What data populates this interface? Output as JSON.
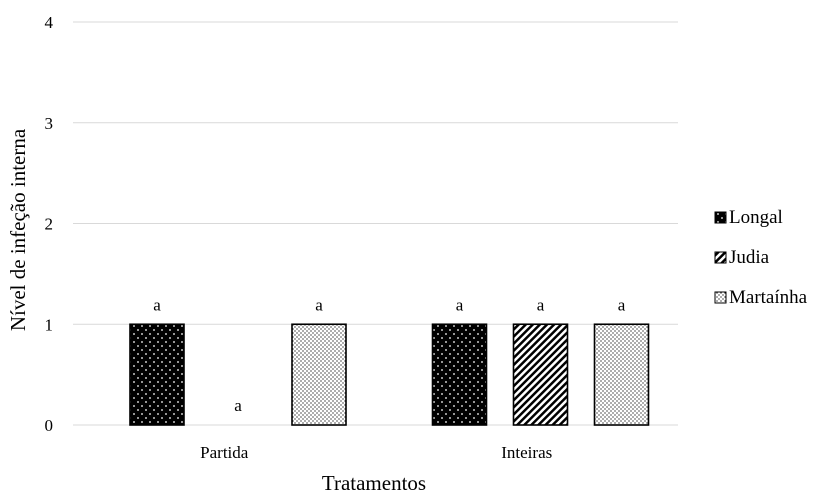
{
  "chart_data": {
    "type": "bar",
    "title": "",
    "xlabel": "Tratamentos",
    "ylabel": "Nível de infeção interna",
    "ylim": [
      0,
      4
    ],
    "yticks": [
      "0",
      "1",
      "2",
      "3",
      "4"
    ],
    "grid": true,
    "legend_position": "right",
    "categories": [
      "Partida",
      "Inteiras"
    ],
    "series": [
      {
        "name": "Longal",
        "pattern": "black-dots",
        "values": [
          1,
          1
        ],
        "labels": [
          "a",
          "a"
        ]
      },
      {
        "name": "Judia",
        "pattern": "diagonal-hatch",
        "values": [
          0,
          1
        ],
        "labels": [
          "a",
          "a"
        ]
      },
      {
        "name": "Martaínha",
        "pattern": "light-dots",
        "values": [
          1,
          1
        ],
        "labels": [
          "a",
          "a"
        ]
      }
    ],
    "colors": {
      "grid": "#d9d9d9",
      "axis": "#d9d9d9",
      "bar_stroke": "#000000",
      "text": "#000000"
    }
  }
}
